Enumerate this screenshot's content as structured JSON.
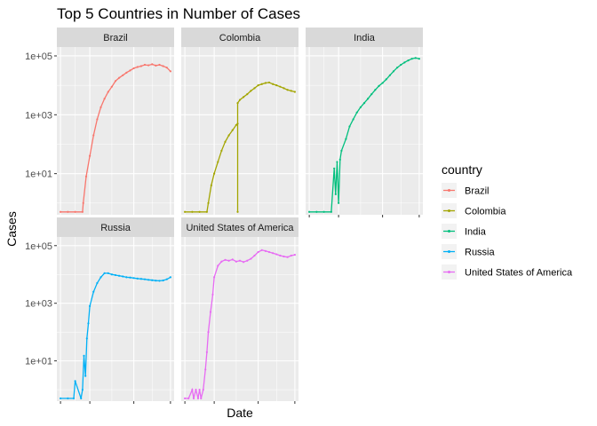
{
  "chart_data": {
    "type": "line",
    "title": "Top 5 Countries in Number of Cases",
    "xlabel": "Date",
    "ylabel": "Cases",
    "y_scale": "log10",
    "y_tick_labels": [
      "1e+01",
      "1e+03",
      "1e+05"
    ],
    "legend": {
      "title": "country",
      "position": "right"
    },
    "facet_layout": {
      "rows": 2,
      "cols": 3
    },
    "series": [
      {
        "name": "Brazil",
        "color": "#F8766D",
        "x": [
          0,
          10,
          20,
          30,
          31,
          35,
          40,
          45,
          50,
          55,
          60,
          65,
          70,
          75,
          80,
          85,
          90,
          95,
          100,
          105,
          110,
          115,
          120,
          125,
          130,
          135,
          140,
          145,
          150
        ],
        "values": [
          0.5,
          0.5,
          0.5,
          0.5,
          1,
          8,
          40,
          200,
          700,
          1800,
          3500,
          6000,
          9000,
          14000,
          18000,
          22000,
          27000,
          32000,
          38000,
          42000,
          45000,
          50000,
          48000,
          52000,
          47000,
          50000,
          45000,
          40000,
          30000
        ]
      },
      {
        "name": "Colombia",
        "color": "#A3A500",
        "x": [
          0,
          10,
          20,
          30,
          32,
          36,
          40,
          45,
          50,
          55,
          60,
          65,
          70,
          72,
          72,
          72,
          75,
          80,
          85,
          90,
          95,
          100,
          105,
          110,
          115,
          120,
          125,
          130,
          135,
          140,
          145,
          150
        ],
        "values": [
          0.5,
          0.5,
          0.5,
          0.5,
          1,
          4,
          10,
          25,
          60,
          120,
          200,
          300,
          450,
          500,
          0.5,
          2500,
          3200,
          4000,
          5000,
          6500,
          8000,
          10000,
          11000,
          12000,
          12500,
          11000,
          10000,
          9000,
          8000,
          7000,
          6500,
          6000
        ]
      },
      {
        "name": "India",
        "color": "#00BF7D",
        "x": [
          0,
          10,
          20,
          30,
          34,
          36,
          38,
          40,
          42,
          44,
          50,
          55,
          60,
          65,
          70,
          75,
          80,
          85,
          90,
          95,
          100,
          105,
          110,
          115,
          120,
          125,
          130,
          135,
          140,
          145,
          150
        ],
        "values": [
          0.5,
          0.5,
          0.5,
          0.5,
          15,
          2,
          25,
          1,
          30,
          60,
          150,
          400,
          700,
          1200,
          1800,
          2500,
          3500,
          5000,
          7000,
          9500,
          12000,
          16000,
          22000,
          30000,
          40000,
          50000,
          60000,
          70000,
          80000,
          85000,
          80000
        ]
      },
      {
        "name": "Russia",
        "color": "#00B0F6",
        "x": [
          0,
          10,
          18,
          20,
          28,
          30,
          32,
          34,
          36,
          38,
          40,
          45,
          50,
          55,
          60,
          65,
          70,
          75,
          80,
          85,
          90,
          95,
          100,
          105,
          110,
          115,
          120,
          125,
          130,
          135,
          140,
          145,
          150
        ],
        "values": [
          0.5,
          0.5,
          0.5,
          2,
          0.5,
          1,
          15,
          3,
          60,
          200,
          800,
          2500,
          5000,
          8000,
          11000,
          11000,
          10000,
          9500,
          9000,
          8500,
          8000,
          7800,
          7500,
          7200,
          7000,
          6800,
          6500,
          6300,
          6100,
          6000,
          6200,
          6800,
          8000
        ]
      },
      {
        "name": "United States of America",
        "color": "#E76BF3",
        "x": [
          0,
          5,
          10,
          12,
          15,
          18,
          20,
          22,
          25,
          28,
          30,
          32,
          35,
          38,
          40,
          45,
          50,
          55,
          60,
          65,
          70,
          75,
          80,
          85,
          90,
          95,
          100,
          105,
          110,
          115,
          120,
          125,
          130,
          135,
          140,
          145,
          150
        ],
        "values": [
          0.5,
          0.5,
          1,
          0.5,
          1,
          0.5,
          1,
          0.5,
          1,
          5,
          20,
          100,
          500,
          2000,
          8000,
          20000,
          28000,
          32000,
          30000,
          33000,
          28000,
          30000,
          27000,
          30000,
          35000,
          45000,
          60000,
          70000,
          65000,
          60000,
          55000,
          50000,
          45000,
          42000,
          40000,
          45000,
          48000
        ]
      }
    ]
  }
}
